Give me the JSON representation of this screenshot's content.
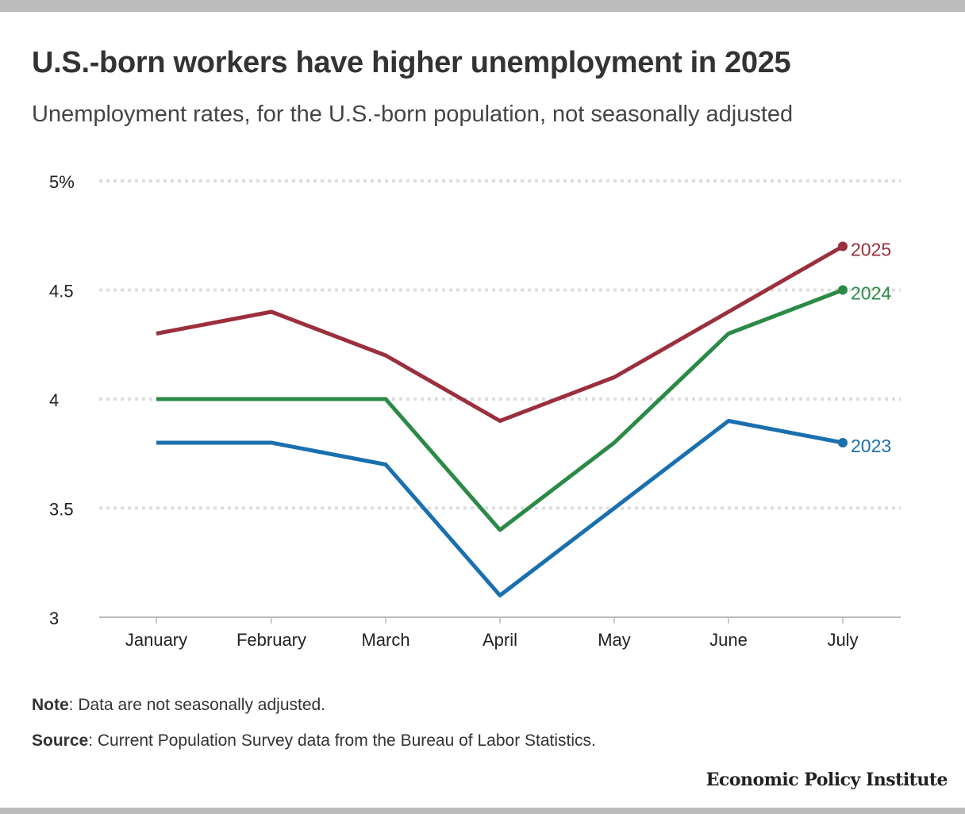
{
  "title": "U.S.-born workers have higher unemployment in 2025",
  "subtitle": "Unemployment rates, for the U.S.-born population, not seasonally adjusted",
  "note_label": "Note",
  "note_text": ": Data are not seasonally adjusted.",
  "source_label": "Source",
  "source_text": ": Current Population Survey data from the Bureau of Labor Statistics.",
  "brand": "Economic Policy Institute",
  "chart_data": {
    "type": "line",
    "title": "U.S.-born workers have higher unemployment in 2025",
    "categories": [
      "January",
      "February",
      "March",
      "April",
      "May",
      "June",
      "July"
    ],
    "ylim": [
      3,
      5
    ],
    "yticks": [
      3,
      3.5,
      4,
      4.5,
      5
    ],
    "ytick_labels": [
      "3",
      "3.5",
      "4",
      "4.5",
      "5%"
    ],
    "grid": true,
    "series": [
      {
        "name": "2025",
        "color": "#9b2f3d",
        "values": [
          4.3,
          4.4,
          4.2,
          3.9,
          4.1,
          4.4,
          4.7
        ]
      },
      {
        "name": "2024",
        "color": "#2a8a46",
        "values": [
          4.0,
          4.0,
          4.0,
          3.4,
          3.8,
          4.3,
          4.5
        ]
      },
      {
        "name": "2023",
        "color": "#1a70ae",
        "values": [
          3.8,
          3.8,
          3.7,
          3.1,
          3.5,
          3.9,
          3.8
        ]
      }
    ]
  }
}
